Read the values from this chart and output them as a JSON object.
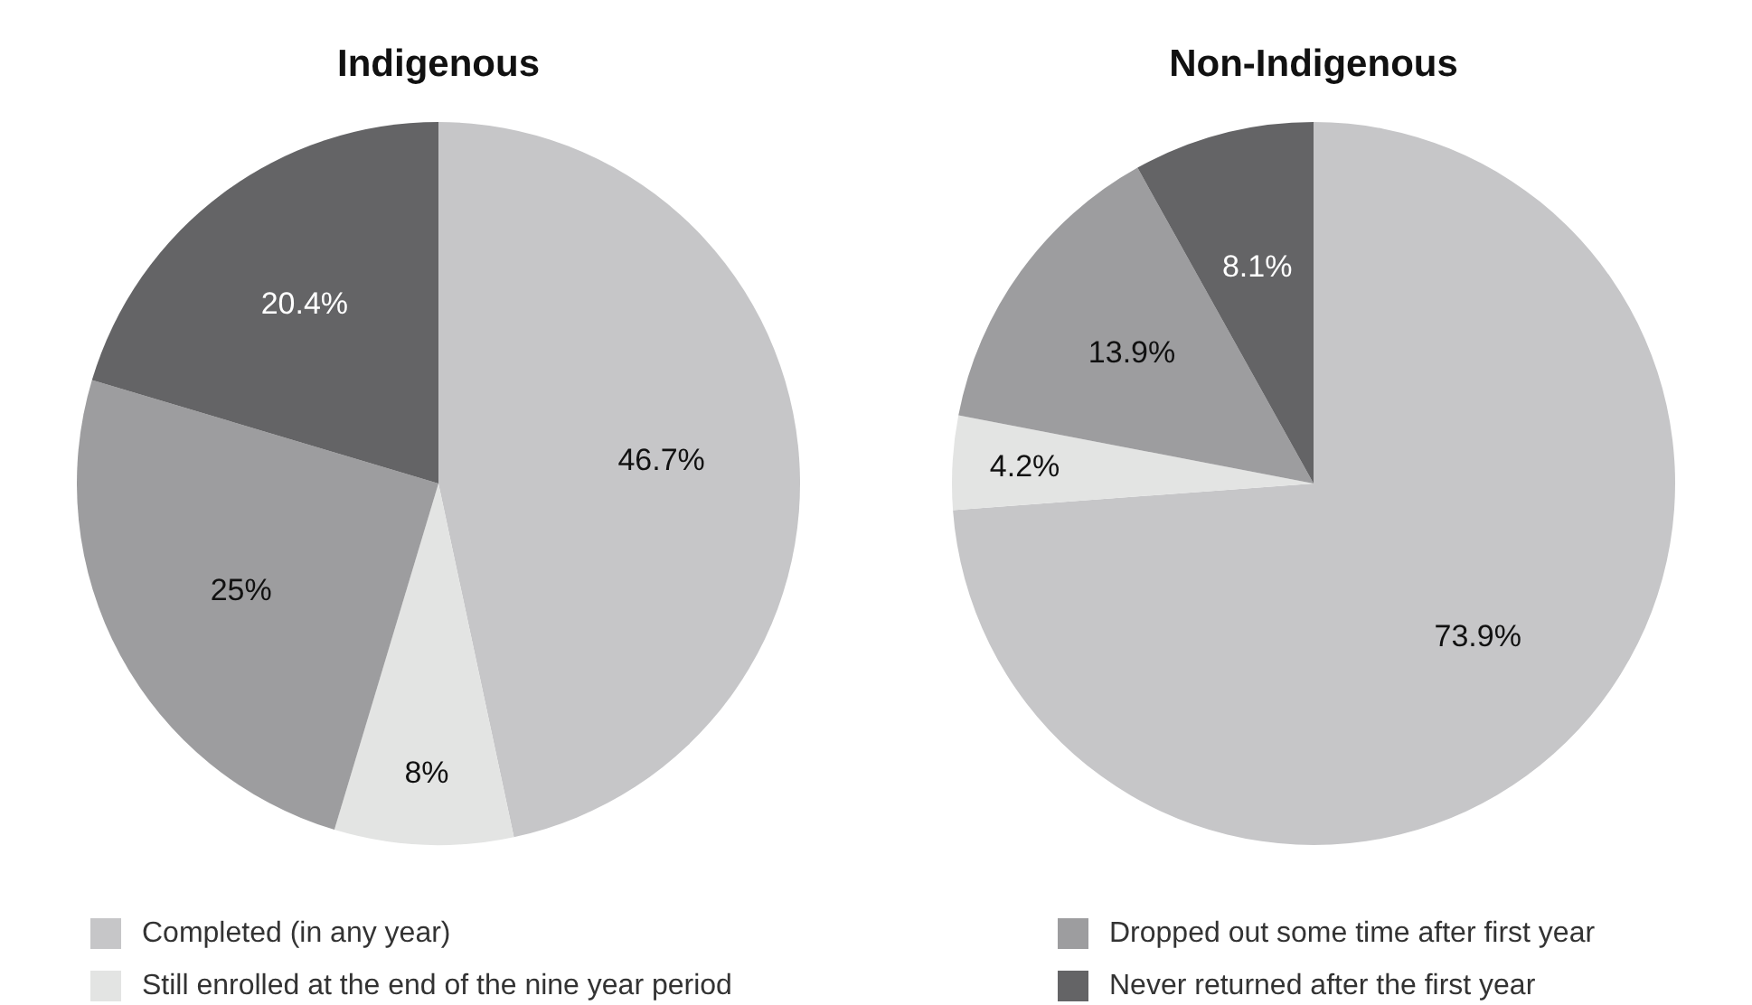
{
  "chart_data": [
    {
      "type": "pie",
      "title": "Indigenous",
      "categories": [
        "Completed (in any year)",
        "Still enrolled at the end of the nine year period",
        "Dropped out some time after first year",
        "Never returned after the first year"
      ],
      "values": [
        46.7,
        8,
        25,
        20.4
      ],
      "colors": [
        "#c6c6c8",
        "#e3e4e3",
        "#9d9d9f",
        "#646466"
      ],
      "value_labels": [
        "46.7%",
        "8%",
        "25%",
        "20.4%"
      ],
      "legend": "bottom"
    },
    {
      "type": "pie",
      "title": "Non-Indigenous",
      "categories": [
        null,
        null,
        null,
        null
      ],
      "values": [
        73.9,
        4.2,
        13.9,
        8.1
      ],
      "colors": [
        "#c6c6c8",
        "#e3e4e3",
        "#9d9d9f",
        "#646466"
      ],
      "value_labels": [
        "73.9%",
        "4.2%",
        "13.9%",
        "8.1%"
      ]
    }
  ]
}
